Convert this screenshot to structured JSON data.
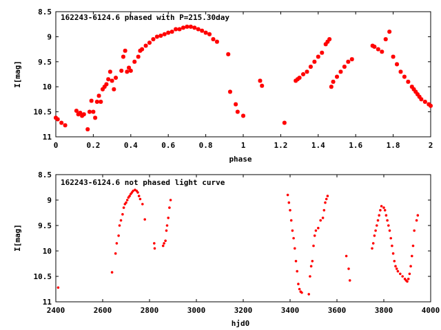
{
  "chart_data": [
    {
      "type": "scatter",
      "title": "162243-6124.6 phased with P=215.30day",
      "xlabel": "phase",
      "ylabel": "I[mag]",
      "xlim": [
        0,
        2
      ],
      "ylim": [
        8.5,
        11
      ],
      "y_inverted": true,
      "xticks": [
        "0",
        "0.2",
        "0.4",
        "0.6",
        "0.8",
        "1",
        "1.2",
        "1.4",
        "1.6",
        "1.8",
        "2"
      ],
      "yticks": [
        "8.5",
        "9",
        "9.5",
        "10",
        "10.5",
        "11"
      ],
      "grid": false,
      "marker_color": "#ff0000",
      "marker": "asterisk",
      "series": [
        {
          "x": [
            0.0,
            0.01,
            0.03,
            0.05,
            0.11,
            0.12,
            0.13,
            0.14,
            0.15,
            0.17,
            0.18,
            0.19,
            0.2,
            0.21,
            0.22,
            0.23,
            0.24,
            0.25,
            0.26,
            0.27,
            0.28,
            0.29,
            0.3,
            0.31,
            0.32,
            0.35,
            0.36,
            0.37,
            0.38,
            0.39,
            0.4,
            0.42,
            0.44,
            0.45,
            0.46,
            0.48,
            0.5,
            0.52,
            0.54,
            0.56,
            0.58,
            0.6,
            0.62,
            0.64,
            0.66,
            0.68,
            0.7,
            0.72,
            0.74,
            0.76,
            0.78,
            0.8,
            0.82,
            0.84,
            0.86,
            0.92,
            0.93,
            0.96,
            0.97,
            1.0,
            1.09,
            1.1,
            1.22,
            1.28,
            1.29,
            1.3,
            1.32,
            1.34,
            1.36,
            1.38,
            1.4,
            1.42,
            1.44,
            1.45,
            1.46,
            1.47,
            1.48,
            1.5,
            1.52,
            1.54,
            1.56,
            1.58,
            1.69,
            1.7,
            1.72,
            1.74,
            1.76,
            1.78,
            1.8,
            1.82,
            1.84,
            1.86,
            1.88,
            1.9,
            1.91,
            1.92,
            1.93,
            1.94,
            1.95,
            1.97,
            1.99,
            2.0
          ],
          "y": [
            10.62,
            10.65,
            10.72,
            10.77,
            10.48,
            10.55,
            10.52,
            10.58,
            10.55,
            10.85,
            10.5,
            10.28,
            10.5,
            10.62,
            10.3,
            10.18,
            10.3,
            10.05,
            10.0,
            9.95,
            9.85,
            9.7,
            9.88,
            10.05,
            9.82,
            9.68,
            9.4,
            9.28,
            9.7,
            9.62,
            9.68,
            9.5,
            9.4,
            9.28,
            9.25,
            9.18,
            9.12,
            9.05,
            9.0,
            8.98,
            8.95,
            8.92,
            8.9,
            8.85,
            8.85,
            8.82,
            8.8,
            8.8,
            8.82,
            8.85,
            8.88,
            8.92,
            8.95,
            9.05,
            9.1,
            9.35,
            10.1,
            10.35,
            10.5,
            10.58,
            9.88,
            9.98,
            10.72,
            9.88,
            9.85,
            9.82,
            9.75,
            9.7,
            9.6,
            9.5,
            9.4,
            9.32,
            9.15,
            9.1,
            9.05,
            10.0,
            9.9,
            9.8,
            9.7,
            9.6,
            9.5,
            9.45,
            9.18,
            9.2,
            9.25,
            9.3,
            9.05,
            8.9,
            9.4,
            9.55,
            9.7,
            9.8,
            9.9,
            10.0,
            10.05,
            10.1,
            10.15,
            10.2,
            10.25,
            10.3,
            10.35,
            10.38
          ]
        }
      ]
    },
    {
      "type": "scatter",
      "title": "162243-6124.6 not phased light curve",
      "xlabel": "hjd0",
      "ylabel": "I[mag]",
      "xlim": [
        2400,
        4000
      ],
      "ylim": [
        8.5,
        11
      ],
      "y_inverted": true,
      "xticks": [
        "2400",
        "2600",
        "2800",
        "3000",
        "3200",
        "3400",
        "3600",
        "3800",
        "4000"
      ],
      "yticks": [
        "8.5",
        "9",
        "9.5",
        "10",
        "10.5",
        "11"
      ],
      "grid": false,
      "marker_color": "#ff0000",
      "marker": "dot",
      "series": [
        {
          "x": [
            2410,
            2640,
            2655,
            2660,
            2668,
            2672,
            2678,
            2685,
            2690,
            2695,
            2700,
            2705,
            2710,
            2715,
            2720,
            2725,
            2730,
            2738,
            2745,
            2750,
            2755,
            2760,
            2770,
            2780,
            2820,
            2822,
            2858,
            2862,
            2868,
            2872,
            2875,
            2880,
            2885,
            2890,
            3390,
            3395,
            3400,
            3405,
            3410,
            3415,
            3420,
            3425,
            3430,
            3435,
            3440,
            3445,
            3450,
            3480,
            3485,
            3490,
            3495,
            3500,
            3505,
            3510,
            3520,
            3530,
            3540,
            3545,
            3550,
            3555,
            3560,
            3640,
            3650,
            3655,
            3750,
            3755,
            3760,
            3765,
            3770,
            3775,
            3780,
            3785,
            3790,
            3800,
            3805,
            3810,
            3815,
            3820,
            3825,
            3830,
            3835,
            3840,
            3845,
            3850,
            3855,
            3860,
            3870,
            3880,
            3890,
            3895,
            3900,
            3905,
            3910,
            3915,
            3920,
            3925,
            3930,
            3940,
            3945
          ],
          "y": [
            10.72,
            10.42,
            10.05,
            9.85,
            9.7,
            9.5,
            9.4,
            9.28,
            9.15,
            9.08,
            9.05,
            9.0,
            8.95,
            8.92,
            8.88,
            8.85,
            8.82,
            8.8,
            8.82,
            8.85,
            8.92,
            8.98,
            9.08,
            9.38,
            9.85,
            9.95,
            9.9,
            9.85,
            9.8,
            9.6,
            9.5,
            9.35,
            9.15,
            9.0,
            8.9,
            9.05,
            9.2,
            9.4,
            9.6,
            9.75,
            9.95,
            10.2,
            10.4,
            10.65,
            10.75,
            10.8,
            10.82,
            10.85,
            10.5,
            10.3,
            10.2,
            9.9,
            9.7,
            9.6,
            9.55,
            9.4,
            9.35,
            9.2,
            9.05,
            8.98,
            8.92,
            10.1,
            10.35,
            10.58,
            9.95,
            9.85,
            9.7,
            9.6,
            9.5,
            9.4,
            9.3,
            9.2,
            9.12,
            9.15,
            9.2,
            9.3,
            9.4,
            9.5,
            9.6,
            9.75,
            9.9,
            10.05,
            10.2,
            10.3,
            10.35,
            10.4,
            10.45,
            10.5,
            10.55,
            10.58,
            10.6,
            10.55,
            10.45,
            10.3,
            10.1,
            9.9,
            9.6,
            9.4,
            9.3
          ]
        }
      ]
    }
  ]
}
